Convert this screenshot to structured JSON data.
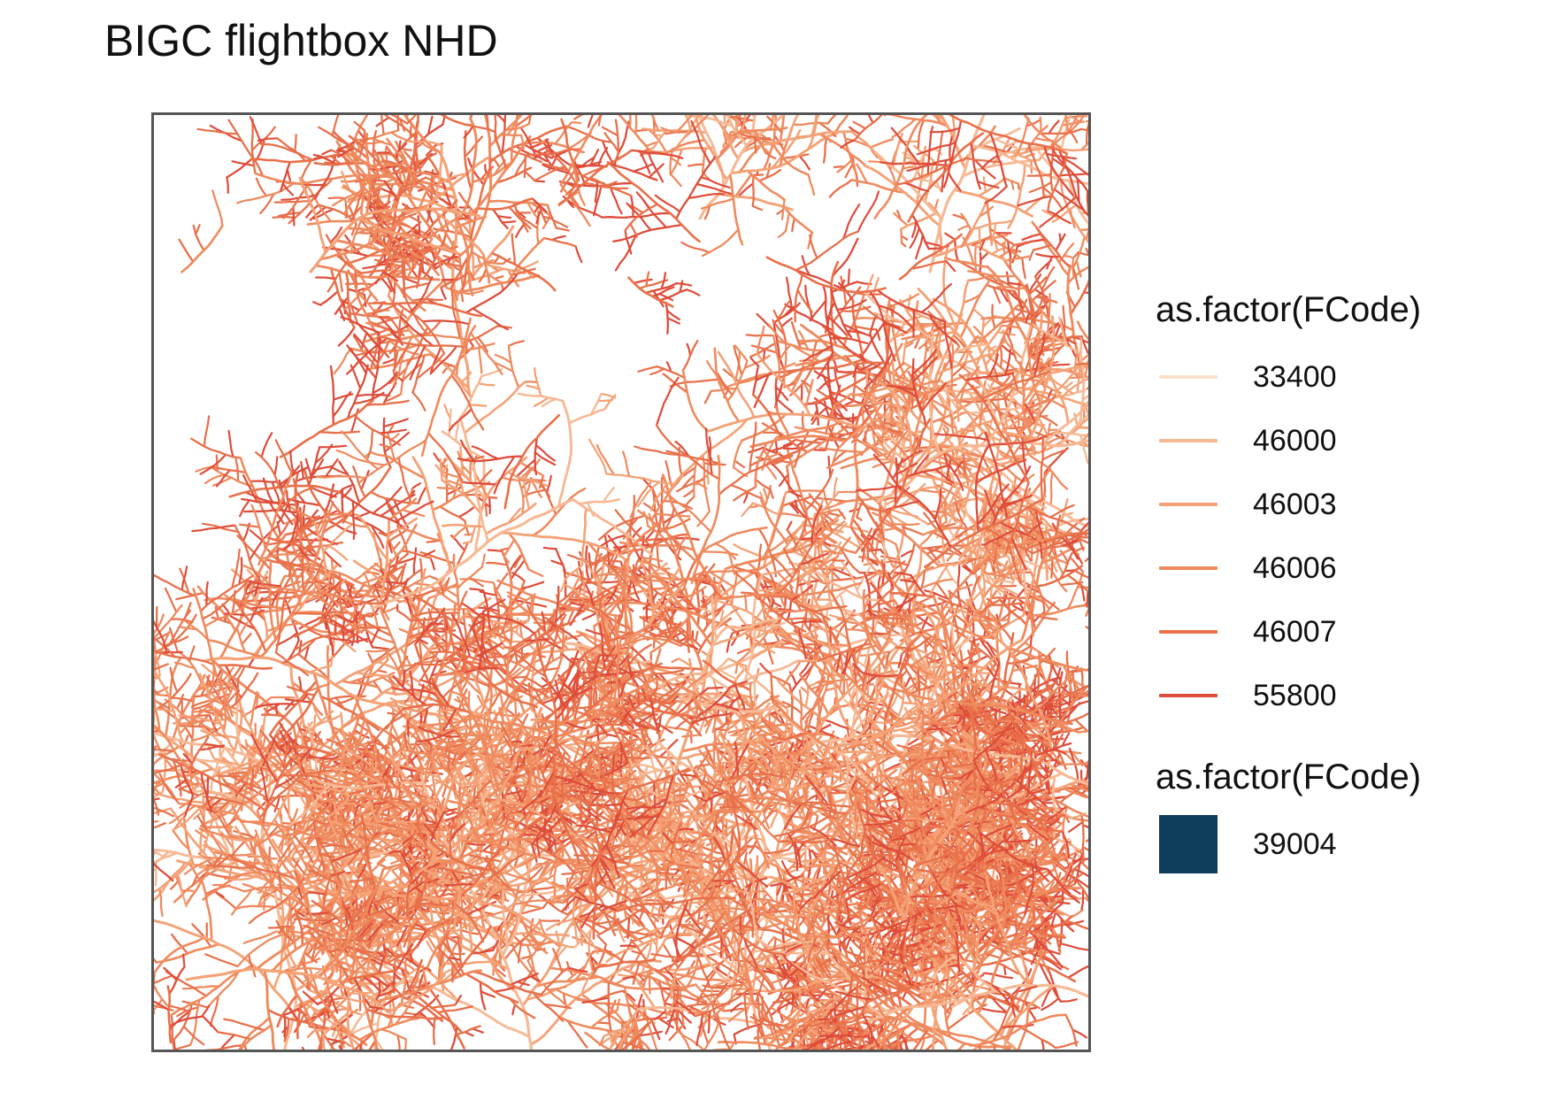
{
  "title": "BIGC flightbox NHD",
  "map": {
    "feature_type": "NHD flowlines (stream network)",
    "frame_color": "#555555"
  },
  "legend": {
    "line_group": {
      "title": "as.factor(FCode)",
      "items": [
        {
          "label": "33400",
          "color": "#fce0cc"
        },
        {
          "label": "46000",
          "color": "#f7b994"
        },
        {
          "label": "46003",
          "color": "#f4a276"
        },
        {
          "label": "46006",
          "color": "#ef8a5e"
        },
        {
          "label": "46007",
          "color": "#e8704a"
        },
        {
          "label": "55800",
          "color": "#de4c3a"
        }
      ]
    },
    "fill_group": {
      "title": "as.factor(FCode)",
      "items": [
        {
          "label": "39004",
          "color": "#0f3d5e"
        }
      ]
    }
  }
}
